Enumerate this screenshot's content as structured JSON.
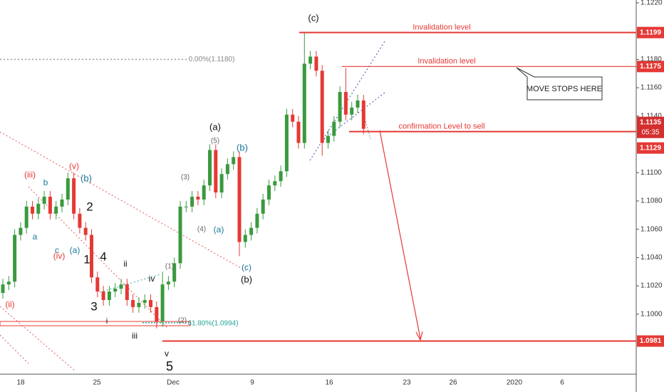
{
  "chart_data": {
    "type": "candlestick",
    "up_color": "#3a9a3e",
    "down_color": "#e53935",
    "ylim": [
      1.0945,
      1.1222
    ],
    "yticks": [
      {
        "value": 1.122,
        "label": "1.1220"
      },
      {
        "value": 1.118,
        "label": "1.1180"
      },
      {
        "value": 1.116,
        "label": "1.1160"
      },
      {
        "value": 1.114,
        "label": "1.1140"
      },
      {
        "value": 1.11,
        "label": "1.1100"
      },
      {
        "value": 1.108,
        "label": "1.1080"
      },
      {
        "value": 1.106,
        "label": "1.1060"
      },
      {
        "value": 1.104,
        "label": "1.1040"
      },
      {
        "value": 1.102,
        "label": "1.1020"
      },
      {
        "value": 1.1,
        "label": "1.1000"
      }
    ],
    "x_labels": [
      "18",
      "25",
      "Dec",
      "9",
      "16",
      "23",
      "26",
      "2020",
      "6"
    ],
    "open": [
      1.1015,
      1.1021,
      1.1023,
      1.1056,
      1.1061,
      1.1076,
      1.1071,
      1.1078,
      1.1083,
      1.1071,
      1.1076,
      1.1081,
      1.1096,
      1.1071,
      1.1061,
      1.1056,
      1.1026,
      1.1016,
      1.101,
      1.1016,
      1.1018,
      1.1021,
      1.101,
      1.1005,
      1.1008,
      1.101,
      1.1005,
      1.0995,
      1.1021,
      1.1023,
      1.1036,
      1.1076,
      1.1076,
      1.1083,
      1.1081,
      1.1091,
      1.1116,
      1.1086,
      1.1099,
      1.1106,
      1.1111,
      1.1051,
      1.1056,
      1.1061,
      1.1071,
      1.1081,
      1.1091,
      1.1094,
      1.1101,
      1.1141,
      1.1136,
      1.1121,
      1.1177,
      1.1182,
      1.1172,
      1.1121,
      1.1126,
      1.1136,
      1.1157,
      1.1141,
      1.1146,
      1.1151
    ],
    "high": [
      1.1025,
      1.1027,
      1.106,
      1.1065,
      1.108,
      1.108,
      1.1082,
      1.1087,
      1.1087,
      1.108,
      1.1085,
      1.11,
      1.11,
      1.1075,
      1.1065,
      1.106,
      1.103,
      1.102,
      1.102,
      1.1022,
      1.1025,
      1.1025,
      1.1014,
      1.1012,
      1.1014,
      1.1014,
      1.1009,
      1.103,
      1.1027,
      1.104,
      1.108,
      1.108,
      1.1087,
      1.1087,
      1.1095,
      1.112,
      1.112,
      1.1103,
      1.111,
      1.1115,
      1.1115,
      1.106,
      1.1065,
      1.1075,
      1.1085,
      1.1095,
      1.1098,
      1.1105,
      1.1145,
      1.1145,
      1.114,
      1.1199,
      1.1186,
      1.1186,
      1.1176,
      1.113,
      1.114,
      1.1161,
      1.1174,
      1.115,
      1.1155,
      1.1155
    ],
    "low": [
      1.1011,
      1.1017,
      1.1019,
      1.1052,
      1.1057,
      1.1067,
      1.1067,
      1.1074,
      1.1067,
      1.1067,
      1.1072,
      1.1077,
      1.1067,
      1.1057,
      1.1052,
      1.1022,
      1.1012,
      1.1006,
      1.1006,
      1.1012,
      1.1014,
      1.1006,
      1.1001,
      1.1001,
      1.1004,
      1.1001,
      1.099,
      1.0991,
      1.1017,
      1.1019,
      1.1032,
      1.1072,
      1.1072,
      1.1077,
      1.1077,
      1.1087,
      1.1082,
      1.1082,
      1.1095,
      1.1102,
      1.1041,
      1.1047,
      1.1052,
      1.1057,
      1.1067,
      1.1077,
      1.1087,
      1.109,
      1.1097,
      1.1132,
      1.1117,
      1.1117,
      1.1173,
      1.1168,
      1.1112,
      1.1117,
      1.1122,
      1.1132,
      1.1137,
      1.1137,
      1.1142,
      1.1127
    ],
    "close": [
      1.1021,
      1.1023,
      1.1056,
      1.1061,
      1.1076,
      1.1071,
      1.1078,
      1.1083,
      1.1071,
      1.1076,
      1.1081,
      1.1096,
      1.1071,
      1.1061,
      1.1056,
      1.1026,
      1.1016,
      1.101,
      1.1016,
      1.1018,
      1.1021,
      1.101,
      1.1005,
      1.1008,
      1.101,
      1.1005,
      1.0995,
      1.1021,
      1.1023,
      1.1036,
      1.1076,
      1.1076,
      1.1083,
      1.1081,
      1.1091,
      1.1116,
      1.1086,
      1.1099,
      1.1106,
      1.1111,
      1.1051,
      1.1056,
      1.1061,
      1.1071,
      1.1081,
      1.1091,
      1.1094,
      1.1101,
      1.1141,
      1.1136,
      1.1121,
      1.1177,
      1.1182,
      1.1172,
      1.1121,
      1.1126,
      1.1136,
      1.1157,
      1.1141,
      1.1146,
      1.1151,
      1.1131
    ],
    "current_price": 1.1135,
    "countdown": "05:35",
    "levels": [
      {
        "value": 1.1199,
        "text": "Invalidation level"
      },
      {
        "value": 1.1175,
        "text": "Invalidation level"
      },
      {
        "value": 1.1129,
        "text": "confirmation Level to sell"
      },
      {
        "value": 1.0981
      }
    ],
    "fib_levels": [
      {
        "value": 1.118,
        "label": "0.00%(1.1180)"
      },
      {
        "value": 1.0994,
        "label": "61.80%(1.0994)"
      }
    ],
    "callout": "MOVE STOPS HERE",
    "annotations": [
      {
        "text": "(iii)",
        "color": "#e53935"
      },
      {
        "text": "b",
        "color": "#1a7a9a"
      },
      {
        "text": "(v)",
        "color": "#e53935"
      },
      {
        "text": "(b)",
        "color": "#1a7a9a"
      },
      {
        "text": "2",
        "color": "#111"
      },
      {
        "text": "a",
        "color": "#1a7a9a"
      },
      {
        "text": "c",
        "color": "#1a7a9a"
      },
      {
        "text": "(iv)",
        "color": "#e53935"
      },
      {
        "text": "(a)",
        "color": "#1a7a9a"
      },
      {
        "text": "1",
        "color": "#111"
      },
      {
        "text": "4",
        "color": "#111"
      },
      {
        "text": "ii",
        "color": "#111"
      },
      {
        "text": "iv",
        "color": "#111"
      },
      {
        "text": "3",
        "color": "#111"
      },
      {
        "text": "i",
        "color": "#111"
      },
      {
        "text": "iii",
        "color": "#111"
      },
      {
        "text": "(ii)",
        "color": "#e53935"
      },
      {
        "text": "(1)",
        "color": "#666"
      },
      {
        "text": "(2)",
        "color": "#666"
      },
      {
        "text": "v",
        "color": "#111"
      },
      {
        "text": "5",
        "color": "#111"
      },
      {
        "text": "(3)",
        "color": "#666"
      },
      {
        "text": "(4)",
        "color": "#666"
      },
      {
        "text": "(5)",
        "color": "#666"
      },
      {
        "text": "(a)",
        "color": "#111"
      },
      {
        "text": "(a)",
        "color": "#1a7a9a"
      },
      {
        "text": "(b)",
        "color": "#1a7a9a"
      },
      {
        "text": "(c)",
        "color": "#1a7a9a"
      },
      {
        "text": "(b)",
        "color": "#111"
      },
      {
        "text": "(c)",
        "color": "#111"
      }
    ]
  }
}
